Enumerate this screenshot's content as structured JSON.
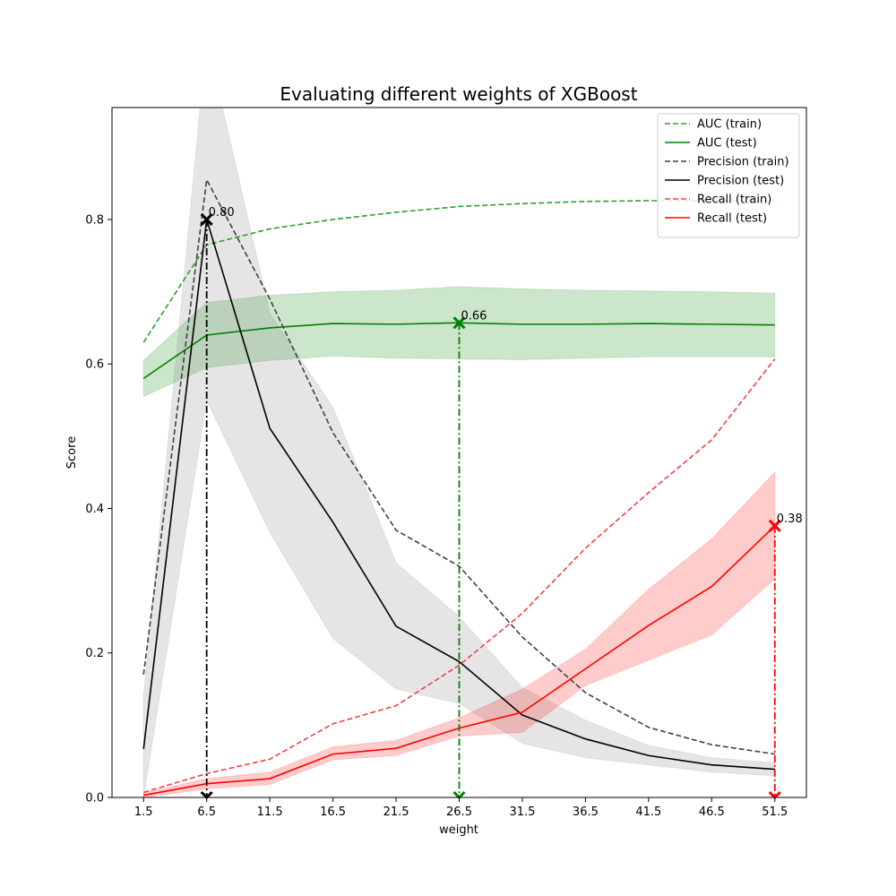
{
  "chart_data": {
    "type": "line",
    "title": "Evaluating different weights of XGBoost",
    "xlabel": "weight",
    "ylabel": "Score",
    "x": [
      1.5,
      6.5,
      11.5,
      16.5,
      21.5,
      26.5,
      31.5,
      36.5,
      41.5,
      46.5,
      51.5
    ],
    "x_tick_labels": [
      "1.5",
      "6.5",
      "11.5",
      "16.5",
      "21.5",
      "26.5",
      "31.5",
      "36.5",
      "41.5",
      "46.5",
      "51.5"
    ],
    "y_ticks": [
      0.0,
      0.2,
      0.4,
      0.6,
      0.8
    ],
    "y_tick_labels": [
      "0.0",
      "0.2",
      "0.4",
      "0.6",
      "0.8"
    ],
    "xlim": [
      -1.0,
      54.0
    ],
    "ylim": [
      0.0,
      0.955
    ],
    "grid": false,
    "legend_position": "top-right",
    "series": [
      {
        "name": "AUC (train)",
        "color": "#2ca02c",
        "style": "dashed",
        "values": [
          0.63,
          0.765,
          0.787,
          0.8,
          0.81,
          0.818,
          0.822,
          0.825,
          0.826,
          0.826,
          0.826
        ]
      },
      {
        "name": "AUC (test)",
        "color": "#008000",
        "style": "solid",
        "values": [
          0.58,
          0.64,
          0.65,
          0.656,
          0.655,
          0.657,
          0.655,
          0.655,
          0.656,
          0.655,
          0.654
        ],
        "band_lower": [
          0.555,
          0.595,
          0.605,
          0.611,
          0.608,
          0.607,
          0.606,
          0.608,
          0.61,
          0.61,
          0.61
        ],
        "band_upper": [
          0.605,
          0.685,
          0.695,
          0.7,
          0.702,
          0.707,
          0.704,
          0.702,
          0.701,
          0.7,
          0.698
        ]
      },
      {
        "name": "Precision (train)",
        "color": "#404040",
        "style": "dashed",
        "values": [
          0.17,
          0.855,
          0.69,
          0.505,
          0.37,
          0.32,
          0.222,
          0.145,
          0.097,
          0.073,
          0.06
        ]
      },
      {
        "name": "Precision (test)",
        "color": "#000000",
        "style": "solid",
        "values": [
          0.067,
          0.8,
          0.511,
          0.381,
          0.237,
          0.188,
          0.114,
          0.081,
          0.058,
          0.045,
          0.039
        ],
        "band_lower": [
          0.0,
          0.55,
          0.367,
          0.22,
          0.15,
          0.13,
          0.075,
          0.055,
          0.045,
          0.035,
          0.03
        ],
        "band_upper": [
          0.14,
          1.05,
          0.67,
          0.54,
          0.325,
          0.25,
          0.152,
          0.107,
          0.072,
          0.055,
          0.048
        ]
      },
      {
        "name": "Recall (train)",
        "color": "#ee4444",
        "style": "dashed",
        "values": [
          0.007,
          0.033,
          0.053,
          0.102,
          0.127,
          0.183,
          0.255,
          0.345,
          0.422,
          0.495,
          0.607
        ]
      },
      {
        "name": "Recall (test)",
        "color": "#ff0000",
        "style": "solid",
        "values": [
          0.003,
          0.019,
          0.026,
          0.06,
          0.068,
          0.096,
          0.118,
          0.178,
          0.238,
          0.292,
          0.376
        ],
        "band_lower": [
          0.0,
          0.012,
          0.018,
          0.052,
          0.058,
          0.085,
          0.09,
          0.155,
          0.19,
          0.225,
          0.303
        ],
        "band_upper": [
          0.006,
          0.026,
          0.035,
          0.07,
          0.079,
          0.11,
          0.15,
          0.205,
          0.288,
          0.358,
          0.45
        ]
      }
    ],
    "annotations": [
      {
        "series": "Precision (test)",
        "x": 6.5,
        "y": 0.8,
        "label": "0.80",
        "color": "#000000"
      },
      {
        "series": "AUC (test)",
        "x": 26.5,
        "y": 0.657,
        "label": "0.66",
        "color": "#008000"
      },
      {
        "series": "Recall (test)",
        "x": 51.5,
        "y": 0.376,
        "label": "0.38",
        "color": "#ff0000"
      }
    ]
  }
}
